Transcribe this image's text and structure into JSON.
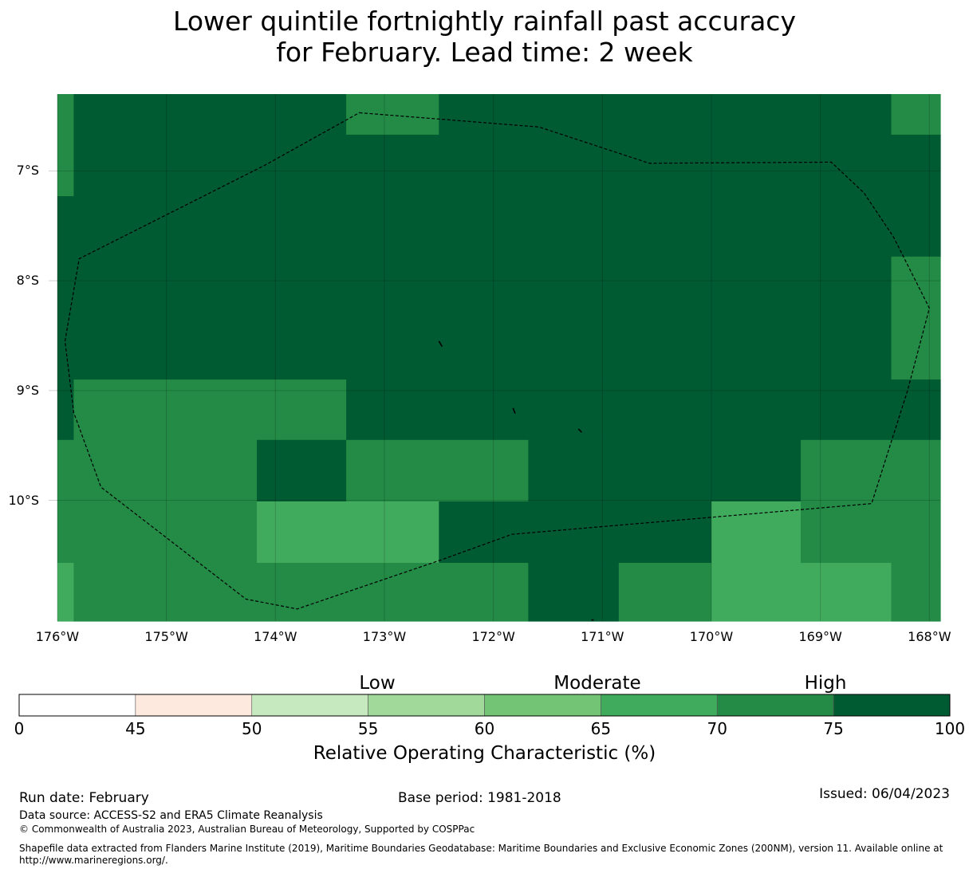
{
  "title": {
    "line1": "Lower quintile fortnightly rainfall past accuracy",
    "line2": "for February. Lead time: 2 week"
  },
  "map": {
    "lat_labels": [
      "7°S",
      "8°S",
      "9°S",
      "10°S"
    ],
    "lon_labels": [
      "176°W",
      "175°W",
      "174°W",
      "173°W",
      "172°W",
      "171°W",
      "170°W",
      "169°W",
      "168°W"
    ],
    "colors": {
      "c70_75": "#238b45",
      "c75_100": "#005a32",
      "c65_70": "#41ab5d",
      "outline": "#000000"
    },
    "cells": [
      {
        "lon": [
          -176.0,
          -175.85
        ],
        "lat": [
          -6.3,
          -7.23
        ],
        "cls": "c70_75"
      },
      {
        "lon": [
          -176.0,
          -175.85
        ],
        "lat": [
          -7.23,
          -9.45
        ],
        "cls": "c75_100"
      },
      {
        "lon": [
          -175.85,
          -173.35
        ],
        "lat": [
          -6.3,
          -8.9
        ],
        "cls": "c75_100"
      },
      {
        "lon": [
          -173.35,
          -172.5
        ],
        "lat": [
          -6.3,
          -6.67
        ],
        "cls": "c70_75"
      },
      {
        "lon": [
          -173.35,
          -172.5
        ],
        "lat": [
          -6.67,
          -8.9
        ],
        "cls": "c75_100"
      },
      {
        "lon": [
          -172.5,
          -168.35
        ],
        "lat": [
          -6.3,
          -8.9
        ],
        "cls": "c75_100"
      },
      {
        "lon": [
          -168.35,
          -167.9
        ],
        "lat": [
          -6.3,
          -6.67
        ],
        "cls": "c70_75"
      },
      {
        "lon": [
          -168.35,
          -167.9
        ],
        "lat": [
          -6.67,
          -7.78
        ],
        "cls": "c75_100"
      },
      {
        "lon": [
          -168.35,
          -167.9
        ],
        "lat": [
          -7.78,
          -8.9
        ],
        "cls": "c70_75"
      },
      {
        "lon": [
          -175.85,
          -173.35
        ],
        "lat": [
          -8.9,
          -9.45
        ],
        "cls": "c70_75"
      },
      {
        "lon": [
          -173.35,
          -167.9
        ],
        "lat": [
          -8.9,
          -9.45
        ],
        "cls": "c75_100"
      },
      {
        "lon": [
          -176.0,
          -174.17
        ],
        "lat": [
          -9.45,
          -10.01
        ],
        "cls": "c70_75"
      },
      {
        "lon": [
          -174.17,
          -173.35
        ],
        "lat": [
          -9.45,
          -10.01
        ],
        "cls": "c75_100"
      },
      {
        "lon": [
          -173.35,
          -171.68
        ],
        "lat": [
          -9.45,
          -10.01
        ],
        "cls": "c70_75"
      },
      {
        "lon": [
          -171.68,
          -169.18
        ],
        "lat": [
          -9.45,
          -10.01
        ],
        "cls": "c75_100"
      },
      {
        "lon": [
          -169.18,
          -167.9
        ],
        "lat": [
          -9.45,
          -10.01
        ],
        "cls": "c70_75"
      },
      {
        "lon": [
          -176.0,
          -174.17
        ],
        "lat": [
          -10.01,
          -10.57
        ],
        "cls": "c70_75"
      },
      {
        "lon": [
          -174.17,
          -172.5
        ],
        "lat": [
          -10.01,
          -10.57
        ],
        "cls": "c65_70"
      },
      {
        "lon": [
          -172.5,
          -170.0
        ],
        "lat": [
          -10.01,
          -10.57
        ],
        "cls": "c75_100"
      },
      {
        "lon": [
          -170.0,
          -169.18
        ],
        "lat": [
          -10.01,
          -10.57
        ],
        "cls": "c65_70"
      },
      {
        "lon": [
          -169.18,
          -167.9
        ],
        "lat": [
          -10.01,
          -10.57
        ],
        "cls": "c70_75"
      },
      {
        "lon": [
          -176.0,
          -175.85
        ],
        "lat": [
          -10.57,
          -11.1
        ],
        "cls": "c65_70"
      },
      {
        "lon": [
          -175.85,
          -171.68
        ],
        "lat": [
          -10.57,
          -11.1
        ],
        "cls": "c70_75"
      },
      {
        "lon": [
          -171.68,
          -170.85
        ],
        "lat": [
          -10.57,
          -11.1
        ],
        "cls": "c75_100"
      },
      {
        "lon": [
          -170.85,
          -170.0
        ],
        "lat": [
          -10.57,
          -11.1
        ],
        "cls": "c70_75"
      },
      {
        "lon": [
          -170.0,
          -168.35
        ],
        "lat": [
          -10.57,
          -11.1
        ],
        "cls": "c65_70"
      },
      {
        "lon": [
          -168.35,
          -167.9
        ],
        "lat": [
          -10.57,
          -11.1
        ],
        "cls": "c70_75"
      }
    ],
    "eez_boundary": [
      [
        -173.23,
        -6.47
      ],
      [
        -171.58,
        -6.6
      ],
      [
        -170.57,
        -6.93
      ],
      [
        -168.9,
        -6.92
      ],
      [
        -168.6,
        -7.2
      ],
      [
        -168.33,
        -7.6
      ],
      [
        -168.0,
        -8.25
      ],
      [
        -168.2,
        -9.0
      ],
      [
        -168.53,
        -10.03
      ],
      [
        -171.83,
        -10.31
      ],
      [
        -172.5,
        -10.55
      ],
      [
        -173.8,
        -10.99
      ],
      [
        -174.27,
        -10.9
      ],
      [
        -175.6,
        -9.88
      ],
      [
        -175.85,
        -9.2
      ],
      [
        -175.93,
        -8.55
      ],
      [
        -175.8,
        -7.8
      ],
      [
        -175.0,
        -7.4
      ],
      [
        -174.1,
        -6.95
      ],
      [
        -173.23,
        -6.47
      ]
    ],
    "islands": [
      [
        [
          -172.5,
          -8.55
        ],
        [
          -172.47,
          -8.6
        ]
      ],
      [
        [
          -171.82,
          -9.16
        ],
        [
          -171.8,
          -9.21
        ]
      ],
      [
        [
          -171.22,
          -9.35
        ],
        [
          -171.19,
          -9.38
        ]
      ],
      [
        [
          -171.1,
          -11.09
        ],
        [
          -171.08,
          -11.09
        ]
      ]
    ]
  },
  "colorbar": {
    "title": "Relative Operating Characteristic (%)",
    "ticks": [
      "0",
      "45",
      "50",
      "55",
      "60",
      "65",
      "70",
      "75",
      "100"
    ],
    "bins": [
      {
        "from": 0,
        "to": 45,
        "color": "#ffffff"
      },
      {
        "from": 45,
        "to": 50,
        "color": "#fee9df"
      },
      {
        "from": 50,
        "to": 55,
        "color": "#c7e9c0"
      },
      {
        "from": 55,
        "to": 60,
        "color": "#a1d99b"
      },
      {
        "from": 60,
        "to": 65,
        "color": "#74c476"
      },
      {
        "from": 65,
        "to": 70,
        "color": "#41ab5d"
      },
      {
        "from": 70,
        "to": 75,
        "color": "#238b45"
      },
      {
        "from": 75,
        "to": 100,
        "color": "#005a32"
      }
    ],
    "categories": [
      {
        "label": "Low",
        "value": 55
      },
      {
        "label": "Moderate",
        "value": 65
      },
      {
        "label": "High",
        "value": 75
      }
    ]
  },
  "footer": {
    "run_date": "Run date: February",
    "base_period": "Base period: 1981-2018",
    "issued": "Issued: 06/04/2023",
    "data_source": "Data source: ACCESS-S2 and ERA5 Climate Reanalysis",
    "copyright": "© Commonwealth of Australia 2023, Australian Bureau of Meteorology, Supported by COSPPac",
    "shapefile": "Shapefile data extracted from Flanders Marine Institute (2019), Maritime Boundaries Geodatabase: Maritime Boundaries and Exclusive Economic Zones (200NM), version 11. Available online at http://www.marineregions.org/."
  }
}
